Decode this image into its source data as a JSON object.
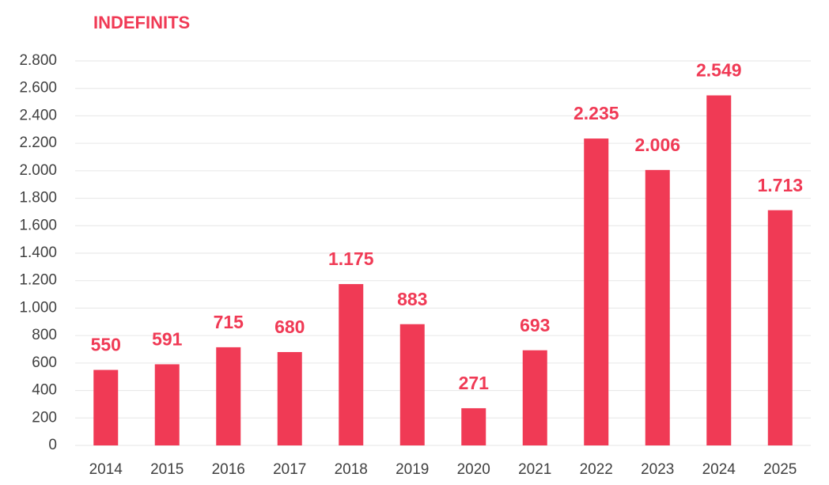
{
  "chart_data": {
    "type": "bar",
    "title": "INDEFINITS",
    "categories": [
      "2014",
      "2015",
      "2016",
      "2017",
      "2018",
      "2019",
      "2020",
      "2021",
      "2022",
      "2023",
      "2024",
      "2025"
    ],
    "values": [
      550,
      591,
      715,
      680,
      1175,
      883,
      271,
      693,
      2235,
      2006,
      2549,
      1713
    ],
    "value_labels": [
      "550",
      "591",
      "715",
      "680",
      "1.175",
      "883",
      "271",
      "693",
      "2.235",
      "2.006",
      "2.549",
      "1.713"
    ],
    "color": "#f03a55",
    "ylim": [
      0,
      2800
    ],
    "yticks": [
      0,
      200,
      400,
      600,
      800,
      {
        "value": 1000,
        "label": "1.000"
      },
      {
        "value": 1200,
        "label": "1.200"
      },
      {
        "value": 1400,
        "label": "1.400"
      },
      {
        "value": 1600,
        "label": "1.600"
      },
      {
        "value": 1800,
        "label": "1.800"
      },
      {
        "value": 2000,
        "label": "2.000"
      },
      {
        "value": 2200,
        "label": "2.200"
      },
      {
        "value": 2400,
        "label": "2.400"
      },
      {
        "value": 2600,
        "label": "2.600"
      },
      {
        "value": 2800,
        "label": "2.800"
      }
    ],
    "grid": true
  }
}
